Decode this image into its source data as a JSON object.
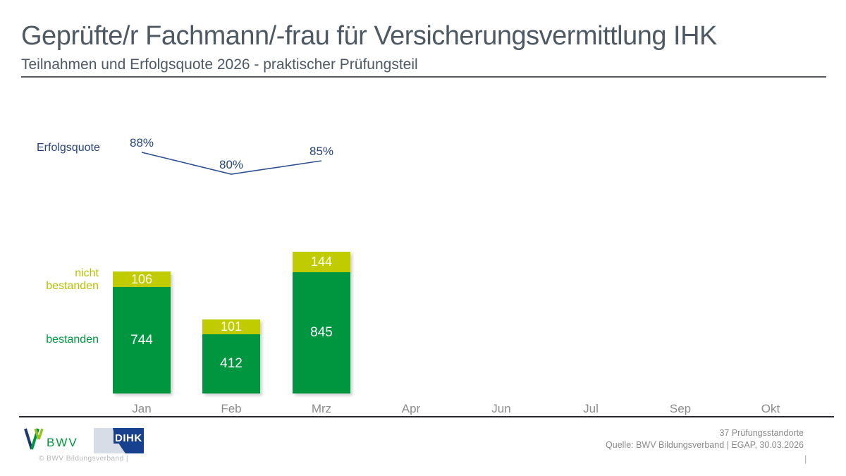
{
  "header": {
    "title": "Geprüfte/r Fachmann/-frau für Versicherungsvermittlung IHK",
    "subtitle": "Teilnahmen und Erfolgsquote 2026 - praktischer Prüfungsteil"
  },
  "line_chart": {
    "label": "Erfolgsquote"
  },
  "footer": {
    "bwv_logo_text": "BWV",
    "dihk_logo_text": "DIHK",
    "copyright": "©  BWV Bildungsverband  |",
    "standorte": "37 Prüfungsstandorte",
    "quelle": "Quelle: BWV Bildungsverband | EGAP, 30.03.2026",
    "pipe": "|"
  },
  "colors": {
    "green": "#009640",
    "yellow_green": "#C0CB00",
    "line_blue": "#2E5192",
    "title_gray": "#4E5964",
    "month_gray": "#8C8C8C"
  },
  "chart_data": [
    {
      "type": "line",
      "name": "Erfolgsquote",
      "categories": [
        "Jan",
        "Feb",
        "Mrz",
        "Apr",
        "Jun",
        "Jul",
        "Sep",
        "Okt"
      ],
      "values": [
        88,
        80,
        85,
        null,
        null,
        null,
        null,
        null
      ],
      "unit": "%",
      "labels": [
        "88%",
        "80%",
        "85%"
      ],
      "legend_position": "left",
      "grid": false
    },
    {
      "type": "bar",
      "stacked": true,
      "categories": [
        "Jan",
        "Feb",
        "Mrz",
        "Apr",
        "Jun",
        "Jul",
        "Sep",
        "Okt"
      ],
      "series": [
        {
          "name": "bestanden",
          "color": "#009640",
          "values": [
            744,
            412,
            845,
            null,
            null,
            null,
            null,
            null
          ]
        },
        {
          "name": "nicht bestanden",
          "color": "#C0CB00",
          "values": [
            106,
            101,
            144,
            null,
            null,
            null,
            null,
            null
          ]
        }
      ],
      "xlabel": "",
      "ylabel": "Teilnahmen",
      "grid": false
    }
  ]
}
